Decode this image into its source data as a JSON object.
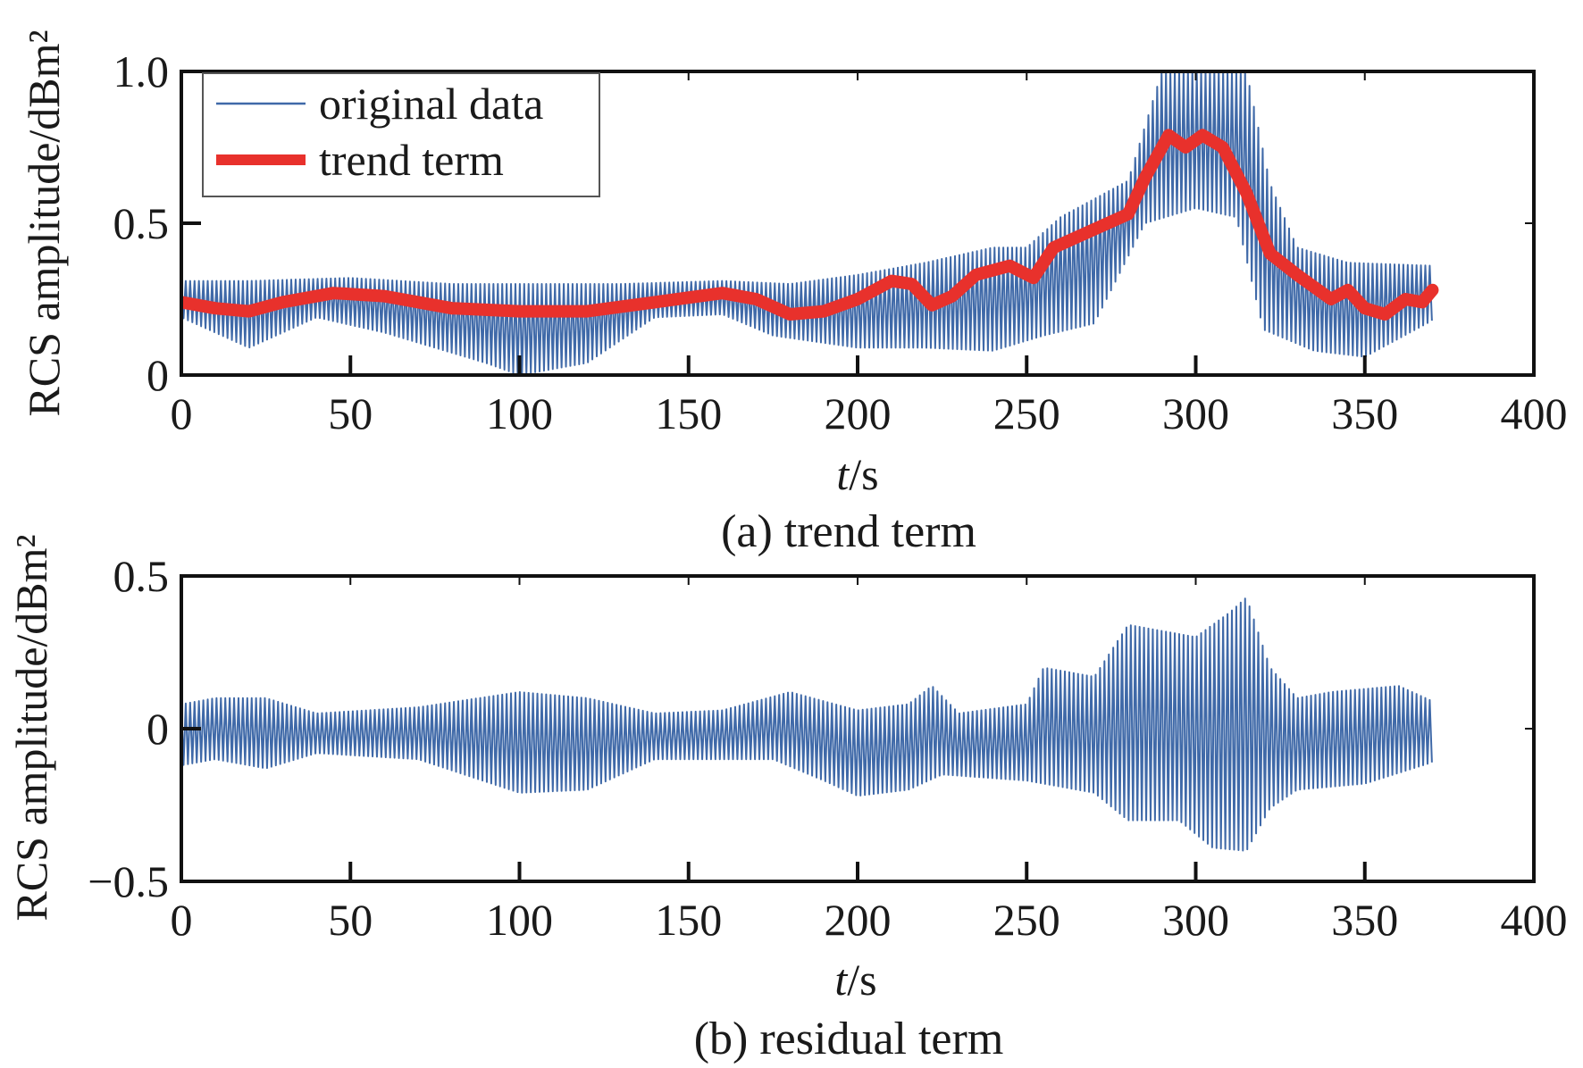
{
  "colors": {
    "original": "#3f69a8",
    "trend": "#e8312c",
    "residual": "#3f69a8",
    "axis": "#111111"
  },
  "chart_data": [
    {
      "type": "line",
      "caption": "(a) trend term",
      "ylabel": "RCS amplitude/dBm²",
      "xlabel_italic": "t",
      "xlabel_unit": "/s",
      "xlim": [
        0,
        400
      ],
      "ylim": [
        0,
        1.0
      ],
      "xticks": [
        "0",
        "50",
        "100",
        "150",
        "200",
        "250",
        "300",
        "350",
        "400"
      ],
      "yticks": [
        "0",
        "0.5",
        "1.0"
      ],
      "legend_position": "top-left",
      "series": [
        {
          "name": "original data",
          "kind": "oscillating",
          "t_range": [
            0,
            370
          ],
          "upper": [
            [
              0,
              0.31
            ],
            [
              20,
              0.31
            ],
            [
              50,
              0.32
            ],
            [
              80,
              0.3
            ],
            [
              100,
              0.3
            ],
            [
              130,
              0.3
            ],
            [
              160,
              0.31
            ],
            [
              180,
              0.3
            ],
            [
              200,
              0.33
            ],
            [
              220,
              0.37
            ],
            [
              240,
              0.42
            ],
            [
              250,
              0.42
            ],
            [
              260,
              0.52
            ],
            [
              280,
              0.64
            ],
            [
              290,
              1.0
            ],
            [
              300,
              1.0
            ],
            [
              315,
              1.0
            ],
            [
              322,
              0.63
            ],
            [
              330,
              0.42
            ],
            [
              345,
              0.37
            ],
            [
              370,
              0.36
            ]
          ],
          "lower": [
            [
              0,
              0.19
            ],
            [
              20,
              0.09
            ],
            [
              40,
              0.19
            ],
            [
              60,
              0.14
            ],
            [
              90,
              0.04
            ],
            [
              100,
              0.0
            ],
            [
              120,
              0.04
            ],
            [
              140,
              0.19
            ],
            [
              160,
              0.2
            ],
            [
              175,
              0.13
            ],
            [
              200,
              0.09
            ],
            [
              220,
              0.09
            ],
            [
              240,
              0.08
            ],
            [
              255,
              0.13
            ],
            [
              270,
              0.17
            ],
            [
              285,
              0.5
            ],
            [
              300,
              0.55
            ],
            [
              312,
              0.52
            ],
            [
              320,
              0.15
            ],
            [
              335,
              0.08
            ],
            [
              350,
              0.06
            ],
            [
              370,
              0.18
            ]
          ]
        },
        {
          "name": "trend term",
          "kind": "smooth",
          "points": [
            [
              0,
              0.24
            ],
            [
              10,
              0.22
            ],
            [
              20,
              0.21
            ],
            [
              30,
              0.24
            ],
            [
              45,
              0.27
            ],
            [
              60,
              0.26
            ],
            [
              80,
              0.22
            ],
            [
              100,
              0.21
            ],
            [
              120,
              0.21
            ],
            [
              140,
              0.24
            ],
            [
              160,
              0.27
            ],
            [
              170,
              0.25
            ],
            [
              180,
              0.2
            ],
            [
              190,
              0.21
            ],
            [
              200,
              0.25
            ],
            [
              210,
              0.31
            ],
            [
              216,
              0.3
            ],
            [
              222,
              0.23
            ],
            [
              228,
              0.26
            ],
            [
              235,
              0.33
            ],
            [
              245,
              0.36
            ],
            [
              252,
              0.32
            ],
            [
              258,
              0.42
            ],
            [
              270,
              0.48
            ],
            [
              280,
              0.53
            ],
            [
              285,
              0.65
            ],
            [
              292,
              0.79
            ],
            [
              297,
              0.75
            ],
            [
              302,
              0.79
            ],
            [
              308,
              0.75
            ],
            [
              315,
              0.6
            ],
            [
              322,
              0.4
            ],
            [
              330,
              0.33
            ],
            [
              340,
              0.25
            ],
            [
              345,
              0.28
            ],
            [
              350,
              0.22
            ],
            [
              356,
              0.2
            ],
            [
              362,
              0.25
            ],
            [
              367,
              0.24
            ],
            [
              370,
              0.28
            ]
          ]
        }
      ]
    },
    {
      "type": "line",
      "caption": "(b) residual term",
      "ylabel": "RCS amplitude/dBm²",
      "xlabel_italic": "t",
      "xlabel_unit": "/s",
      "xlim": [
        0,
        400
      ],
      "ylim": [
        -0.5,
        0.5
      ],
      "xticks": [
        "0",
        "50",
        "100",
        "150",
        "200",
        "250",
        "300",
        "350",
        "400"
      ],
      "yticks": [
        "0.5",
        "0",
        "−0.5"
      ],
      "series": [
        {
          "kind": "oscillating",
          "t_range": [
            0,
            370
          ],
          "upper": [
            [
              0,
              0.08
            ],
            [
              10,
              0.1
            ],
            [
              25,
              0.1
            ],
            [
              40,
              0.05
            ],
            [
              70,
              0.07
            ],
            [
              100,
              0.12
            ],
            [
              120,
              0.1
            ],
            [
              140,
              0.05
            ],
            [
              160,
              0.06
            ],
            [
              180,
              0.12
            ],
            [
              200,
              0.06
            ],
            [
              215,
              0.08
            ],
            [
              222,
              0.14
            ],
            [
              230,
              0.05
            ],
            [
              250,
              0.08
            ],
            [
              255,
              0.2
            ],
            [
              270,
              0.17
            ],
            [
              280,
              0.34
            ],
            [
              290,
              0.32
            ],
            [
              300,
              0.3
            ],
            [
              310,
              0.38
            ],
            [
              315,
              0.43
            ],
            [
              322,
              0.2
            ],
            [
              330,
              0.1
            ],
            [
              340,
              0.12
            ],
            [
              360,
              0.14
            ],
            [
              370,
              0.09
            ]
          ],
          "lower": [
            [
              0,
              -0.12
            ],
            [
              10,
              -0.1
            ],
            [
              25,
              -0.13
            ],
            [
              40,
              -0.08
            ],
            [
              70,
              -0.1
            ],
            [
              100,
              -0.21
            ],
            [
              120,
              -0.2
            ],
            [
              140,
              -0.1
            ],
            [
              160,
              -0.1
            ],
            [
              175,
              -0.1
            ],
            [
              190,
              -0.17
            ],
            [
              200,
              -0.22
            ],
            [
              215,
              -0.2
            ],
            [
              225,
              -0.15
            ],
            [
              250,
              -0.17
            ],
            [
              270,
              -0.21
            ],
            [
              280,
              -0.3
            ],
            [
              295,
              -0.3
            ],
            [
              305,
              -0.39
            ],
            [
              315,
              -0.4
            ],
            [
              322,
              -0.26
            ],
            [
              330,
              -0.2
            ],
            [
              350,
              -0.18
            ],
            [
              370,
              -0.11
            ]
          ]
        }
      ]
    }
  ]
}
